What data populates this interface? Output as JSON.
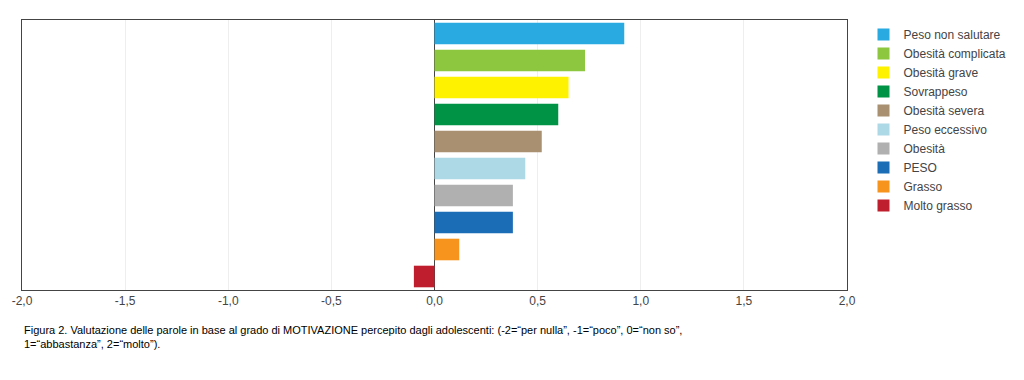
{
  "chart_data": {
    "type": "bar",
    "orientation": "horizontal",
    "categories": [
      "Peso non salutare",
      "Obesità complicata",
      "Obesità grave",
      "Sovrappeso",
      "Obesità severa",
      "Peso eccessivo",
      "Obesità",
      "PESO",
      "Grasso",
      "Molto grasso"
    ],
    "values": [
      0.92,
      0.73,
      0.65,
      0.6,
      0.52,
      0.44,
      0.38,
      0.38,
      0.12,
      -0.1
    ],
    "colors": [
      "#29ABE2",
      "#8DC63F",
      "#FFF200",
      "#009245",
      "#A89070",
      "#ADD8E6",
      "#B0B0B0",
      "#1B6DB5",
      "#F7941D",
      "#BE1E2D"
    ],
    "xlim": [
      -2.0,
      2.0
    ],
    "xticks": [
      {
        "value": -2.0,
        "label": "-2,0"
      },
      {
        "value": -1.5,
        "label": "-1,5"
      },
      {
        "value": -1.0,
        "label": "-1,0"
      },
      {
        "value": -0.5,
        "label": "-0,5"
      },
      {
        "value": 0.0,
        "label": "0,0"
      },
      {
        "value": 0.5,
        "label": "0,5"
      },
      {
        "value": 1.0,
        "label": "1,0"
      },
      {
        "value": 1.5,
        "label": "1,5"
      },
      {
        "value": 2.0,
        "label": "2,0"
      }
    ],
    "annotations": [
      "Figura 2. Valutazione delle parole in base al grado di MOTIVAZIONE percepito dagli adolescenti: (-2=“per nulla”, -1=“poco”, 0=“non so”,",
      "1=“abbastanza”, 2=“molto”)."
    ],
    "grid": true,
    "legend": "right",
    "tick_labels": "x"
  }
}
